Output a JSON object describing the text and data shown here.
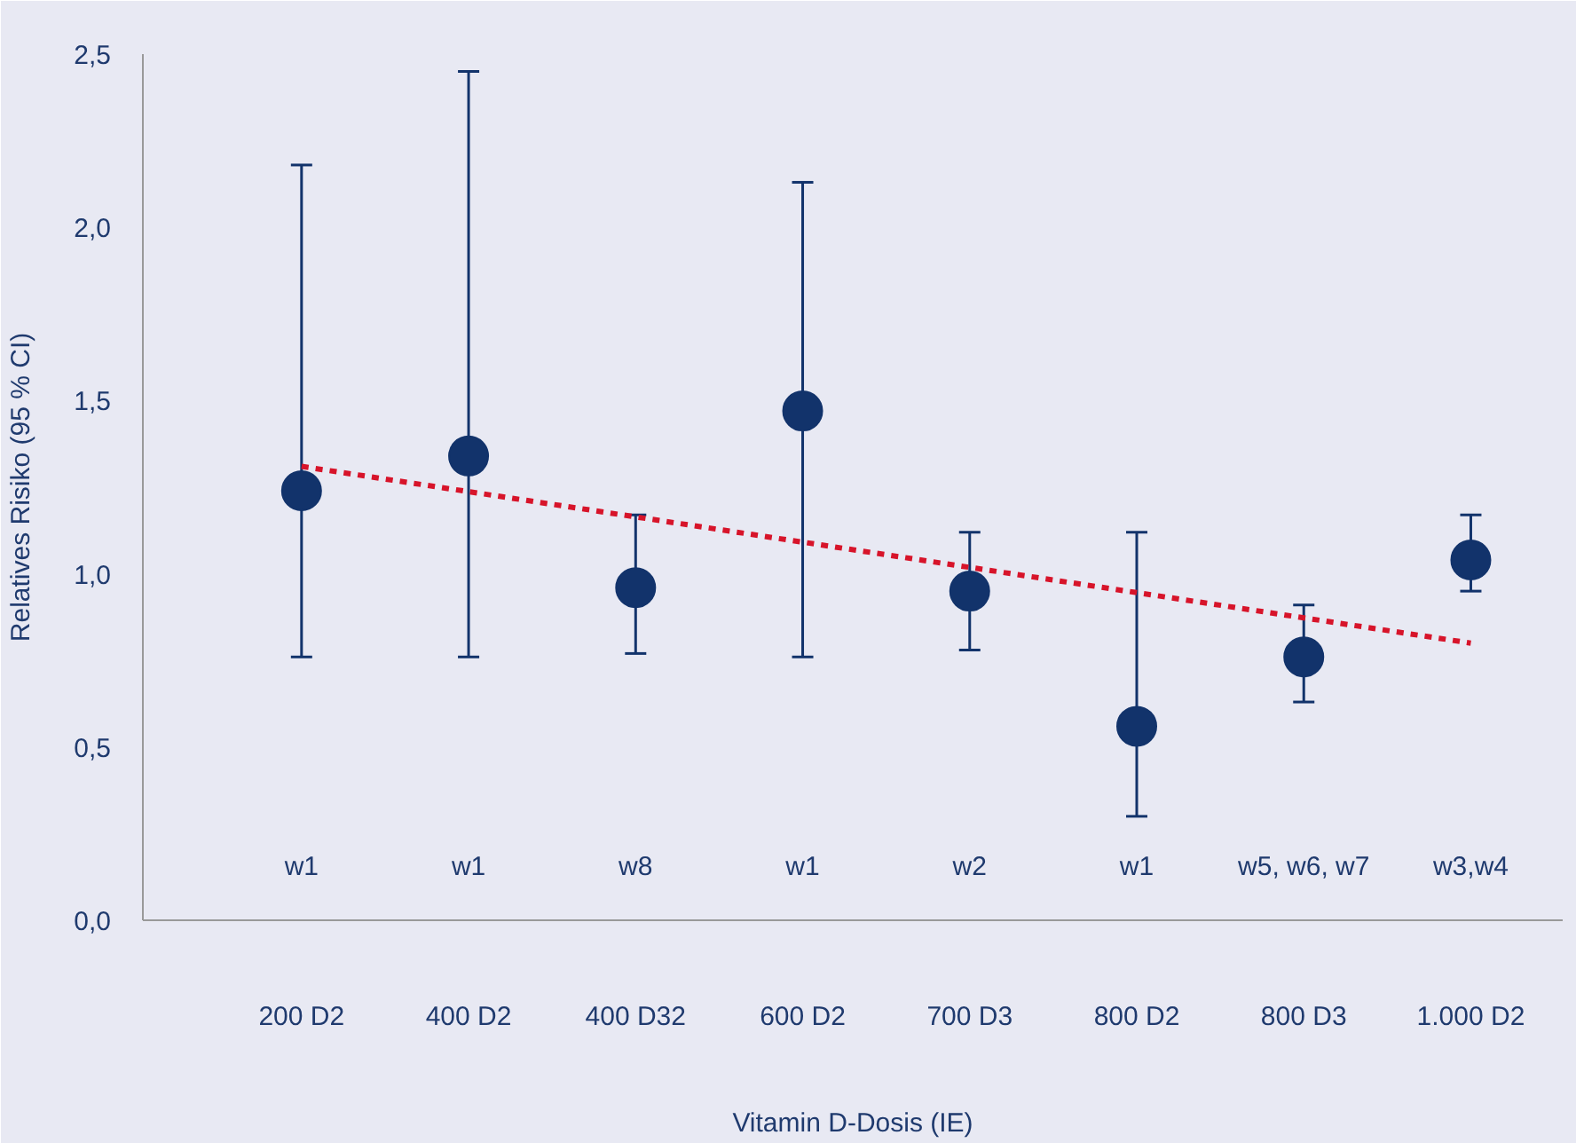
{
  "chart_data": {
    "type": "scatter",
    "xlabel": "Vitamin D-Dosis (IE)",
    "ylabel": "Relatives Risiko (95 % CI)",
    "categories": [
      "200 D2",
      "400 D2",
      "400 D32",
      "600 D2",
      "700 D3",
      "800 D2",
      "800 D3",
      "1.000 D2"
    ],
    "series": [
      {
        "color": "#12336b",
        "values": [
          1.24,
          1.34,
          0.96,
          1.47,
          0.95,
          0.56,
          0.76,
          1.04
        ],
        "errors": [
          [
            0.76,
            2.18
          ],
          [
            0.76,
            2.45
          ],
          [
            0.77,
            1.17
          ],
          [
            0.76,
            2.13
          ],
          [
            0.78,
            1.12
          ],
          [
            0.3,
            1.12
          ],
          [
            0.63,
            0.91
          ],
          [
            0.95,
            1.17
          ]
        ]
      },
      {
        "type": "line",
        "color": "#d7142a",
        "line_style": "dashed",
        "marker": "none",
        "x": [
          "200 D2",
          "1.000 D2"
        ],
        "values": [
          1.31,
          0.8
        ]
      }
    ],
    "annotations": [
      "w1",
      "w1",
      "w8",
      "w1",
      "w2",
      "w1",
      "w5, w6, w7",
      "w3,w4"
    ],
    "marker": "circle",
    "ylim": [
      0,
      2.5
    ],
    "yticks": [
      {
        "value": 0,
        "label": "0,0"
      },
      {
        "value": 0.5,
        "label": "0,5"
      },
      {
        "value": 1.0,
        "label": "1,0"
      },
      {
        "value": 1.5,
        "label": "1,5"
      },
      {
        "value": 2.0,
        "label": "2,0"
      },
      {
        "value": 2.5,
        "label": "2,5"
      }
    ],
    "grid": false
  }
}
